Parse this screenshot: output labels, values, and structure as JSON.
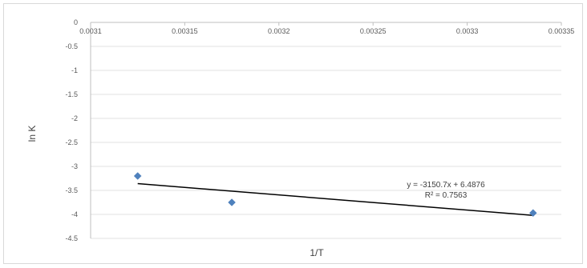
{
  "chart_data": {
    "type": "scatter",
    "title": "",
    "xlabel": "1/T",
    "ylabel": "ln K",
    "xlim": [
      0.0031,
      0.00335
    ],
    "ylim": [
      -4.5,
      0
    ],
    "x_ticks": [
      0.0031,
      0.00315,
      0.0032,
      0.00325,
      0.0033,
      0.00335
    ],
    "x_tick_labels": [
      "0.0031",
      "0.00315",
      "0.0032",
      "0.00325",
      "0.0033",
      "0.00335"
    ],
    "y_ticks": [
      0,
      -0.5,
      -1,
      -1.5,
      -2,
      -2.5,
      -3,
      -3.5,
      -4,
      -4.5
    ],
    "y_tick_labels": [
      "0",
      "-0.5",
      "-1",
      "-1.5",
      "-2",
      "-2.5",
      "-3",
      "-3.5",
      "-4",
      "-4.5"
    ],
    "x_axis_position": "top (crosses at y = 0)",
    "grid": {
      "horizontal": true,
      "vertical": false
    },
    "legend": "none",
    "series": [
      {
        "x": [
          0.003125,
          0.003175,
          0.003335
        ],
        "y": [
          -3.2,
          -3.75,
          -3.97
        ],
        "color": "#4f81bd",
        "marker": "diamond"
      }
    ],
    "trendline": {
      "type": "linear",
      "slope": -3150.7,
      "intercept": 6.4876,
      "color": "#000000",
      "equation": "y = -3150.7x + 6.4876",
      "r_squared": "R² = 0.7563"
    }
  }
}
